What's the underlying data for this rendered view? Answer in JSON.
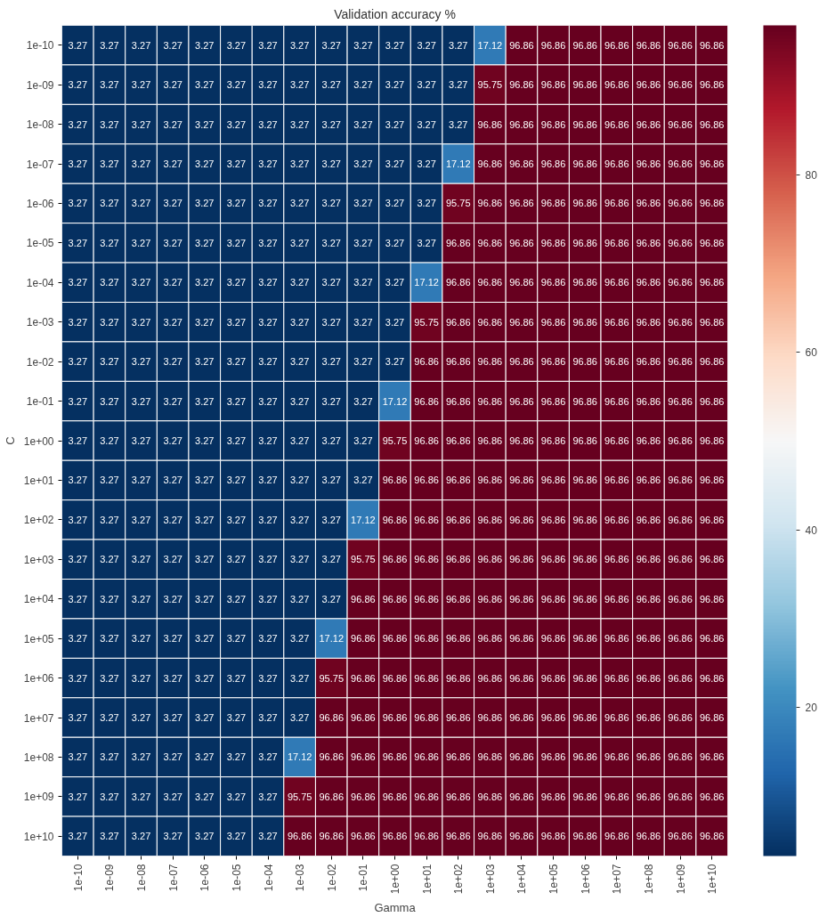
{
  "chart_data": {
    "type": "heatmap",
    "title": "Validation accuracy %",
    "xlabel": "Gamma",
    "ylabel": "C",
    "categories": [
      "1e-10",
      "1e-09",
      "1e-08",
      "1e-07",
      "1e-06",
      "1e-05",
      "1e-04",
      "1e-03",
      "1e-02",
      "1e-01",
      "1e+00",
      "1e+01",
      "1e+02",
      "1e+03",
      "1e+04",
      "1e+05",
      "1e+06",
      "1e+07",
      "1e+08",
      "1e+09",
      "1e+10"
    ],
    "y_categories": [
      "1e-10",
      "1e-09",
      "1e-08",
      "1e-07",
      "1e-06",
      "1e-05",
      "1e-04",
      "1e-03",
      "1e-02",
      "1e-01",
      "1e+00",
      "1e+01",
      "1e+02",
      "1e+03",
      "1e+04",
      "1e+05",
      "1e+06",
      "1e+07",
      "1e+08",
      "1e+09",
      "1e+10"
    ],
    "cells": [
      [
        3.27,
        3.27,
        3.27,
        3.27,
        3.27,
        3.27,
        3.27,
        3.27,
        3.27,
        3.27,
        3.27,
        3.27,
        3.27,
        17.12,
        96.86,
        96.86,
        96.86,
        96.86,
        96.86,
        96.86,
        96.86
      ],
      [
        3.27,
        3.27,
        3.27,
        3.27,
        3.27,
        3.27,
        3.27,
        3.27,
        3.27,
        3.27,
        3.27,
        3.27,
        3.27,
        95.75,
        96.86,
        96.86,
        96.86,
        96.86,
        96.86,
        96.86,
        96.86
      ],
      [
        3.27,
        3.27,
        3.27,
        3.27,
        3.27,
        3.27,
        3.27,
        3.27,
        3.27,
        3.27,
        3.27,
        3.27,
        3.27,
        96.86,
        96.86,
        96.86,
        96.86,
        96.86,
        96.86,
        96.86,
        96.86
      ],
      [
        3.27,
        3.27,
        3.27,
        3.27,
        3.27,
        3.27,
        3.27,
        3.27,
        3.27,
        3.27,
        3.27,
        3.27,
        17.12,
        96.86,
        96.86,
        96.86,
        96.86,
        96.86,
        96.86,
        96.86,
        96.86
      ],
      [
        3.27,
        3.27,
        3.27,
        3.27,
        3.27,
        3.27,
        3.27,
        3.27,
        3.27,
        3.27,
        3.27,
        3.27,
        95.75,
        96.86,
        96.86,
        96.86,
        96.86,
        96.86,
        96.86,
        96.86,
        96.86
      ],
      [
        3.27,
        3.27,
        3.27,
        3.27,
        3.27,
        3.27,
        3.27,
        3.27,
        3.27,
        3.27,
        3.27,
        3.27,
        96.86,
        96.86,
        96.86,
        96.86,
        96.86,
        96.86,
        96.86,
        96.86,
        96.86
      ],
      [
        3.27,
        3.27,
        3.27,
        3.27,
        3.27,
        3.27,
        3.27,
        3.27,
        3.27,
        3.27,
        3.27,
        17.12,
        96.86,
        96.86,
        96.86,
        96.86,
        96.86,
        96.86,
        96.86,
        96.86,
        96.86
      ],
      [
        3.27,
        3.27,
        3.27,
        3.27,
        3.27,
        3.27,
        3.27,
        3.27,
        3.27,
        3.27,
        3.27,
        95.75,
        96.86,
        96.86,
        96.86,
        96.86,
        96.86,
        96.86,
        96.86,
        96.86,
        96.86
      ],
      [
        3.27,
        3.27,
        3.27,
        3.27,
        3.27,
        3.27,
        3.27,
        3.27,
        3.27,
        3.27,
        3.27,
        96.86,
        96.86,
        96.86,
        96.86,
        96.86,
        96.86,
        96.86,
        96.86,
        96.86,
        96.86
      ],
      [
        3.27,
        3.27,
        3.27,
        3.27,
        3.27,
        3.27,
        3.27,
        3.27,
        3.27,
        3.27,
        17.12,
        96.86,
        96.86,
        96.86,
        96.86,
        96.86,
        96.86,
        96.86,
        96.86,
        96.86,
        96.86
      ],
      [
        3.27,
        3.27,
        3.27,
        3.27,
        3.27,
        3.27,
        3.27,
        3.27,
        3.27,
        3.27,
        95.75,
        96.86,
        96.86,
        96.86,
        96.86,
        96.86,
        96.86,
        96.86,
        96.86,
        96.86,
        96.86
      ],
      [
        3.27,
        3.27,
        3.27,
        3.27,
        3.27,
        3.27,
        3.27,
        3.27,
        3.27,
        3.27,
        96.86,
        96.86,
        96.86,
        96.86,
        96.86,
        96.86,
        96.86,
        96.86,
        96.86,
        96.86,
        96.86
      ],
      [
        3.27,
        3.27,
        3.27,
        3.27,
        3.27,
        3.27,
        3.27,
        3.27,
        3.27,
        17.12,
        96.86,
        96.86,
        96.86,
        96.86,
        96.86,
        96.86,
        96.86,
        96.86,
        96.86,
        96.86,
        96.86
      ],
      [
        3.27,
        3.27,
        3.27,
        3.27,
        3.27,
        3.27,
        3.27,
        3.27,
        3.27,
        95.75,
        96.86,
        96.86,
        96.86,
        96.86,
        96.86,
        96.86,
        96.86,
        96.86,
        96.86,
        96.86,
        96.86
      ],
      [
        3.27,
        3.27,
        3.27,
        3.27,
        3.27,
        3.27,
        3.27,
        3.27,
        3.27,
        96.86,
        96.86,
        96.86,
        96.86,
        96.86,
        96.86,
        96.86,
        96.86,
        96.86,
        96.86,
        96.86,
        96.86
      ],
      [
        3.27,
        3.27,
        3.27,
        3.27,
        3.27,
        3.27,
        3.27,
        3.27,
        17.12,
        96.86,
        96.86,
        96.86,
        96.86,
        96.86,
        96.86,
        96.86,
        96.86,
        96.86,
        96.86,
        96.86,
        96.86
      ],
      [
        3.27,
        3.27,
        3.27,
        3.27,
        3.27,
        3.27,
        3.27,
        3.27,
        95.75,
        96.86,
        96.86,
        96.86,
        96.86,
        96.86,
        96.86,
        96.86,
        96.86,
        96.86,
        96.86,
        96.86,
        96.86
      ],
      [
        3.27,
        3.27,
        3.27,
        3.27,
        3.27,
        3.27,
        3.27,
        3.27,
        96.86,
        96.86,
        96.86,
        96.86,
        96.86,
        96.86,
        96.86,
        96.86,
        96.86,
        96.86,
        96.86,
        96.86,
        96.86
      ],
      [
        3.27,
        3.27,
        3.27,
        3.27,
        3.27,
        3.27,
        3.27,
        17.12,
        96.86,
        96.86,
        96.86,
        96.86,
        96.86,
        96.86,
        96.86,
        96.86,
        96.86,
        96.86,
        96.86,
        96.86,
        96.86
      ],
      [
        3.27,
        3.27,
        3.27,
        3.27,
        3.27,
        3.27,
        3.27,
        95.75,
        96.86,
        96.86,
        96.86,
        96.86,
        96.86,
        96.86,
        96.86,
        96.86,
        96.86,
        96.86,
        96.86,
        96.86,
        96.86
      ],
      [
        3.27,
        3.27,
        3.27,
        3.27,
        3.27,
        3.27,
        3.27,
        96.86,
        96.86,
        96.86,
        96.86,
        96.86,
        96.86,
        96.86,
        96.86,
        96.86,
        96.86,
        96.86,
        96.86,
        96.86,
        96.86
      ]
    ],
    "clim": [
      3.27,
      96.86
    ],
    "cticks": [
      20,
      40,
      60,
      80
    ],
    "data_labels": true
  }
}
